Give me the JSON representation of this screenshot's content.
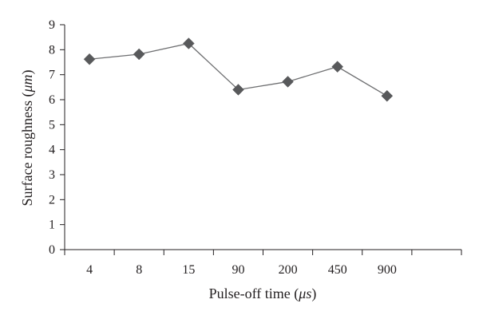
{
  "chart_data": {
    "type": "line",
    "categories": [
      "4",
      "8",
      "15",
      "90",
      "200",
      "450",
      "900"
    ],
    "series": [
      {
        "values": [
          7.62,
          7.82,
          8.25,
          6.4,
          6.72,
          7.32,
          6.15
        ]
      }
    ],
    "xlabel_prefix": "Pulse-off time (",
    "xlabel_unit": "μs",
    "xlabel_suffix": ")",
    "ylabel_prefix": "Surface roughness (",
    "ylabel_unit": "μm",
    "ylabel_suffix": ")",
    "yticks": [
      "0",
      "1",
      "2",
      "3",
      "4",
      "5",
      "6",
      "7",
      "8",
      "9"
    ],
    "ylim": [
      0,
      9
    ],
    "marker": "diamond",
    "grid": false,
    "colors": {
      "line": "#6d6e70",
      "marker": "#58595b",
      "axis": "#231f20"
    }
  }
}
